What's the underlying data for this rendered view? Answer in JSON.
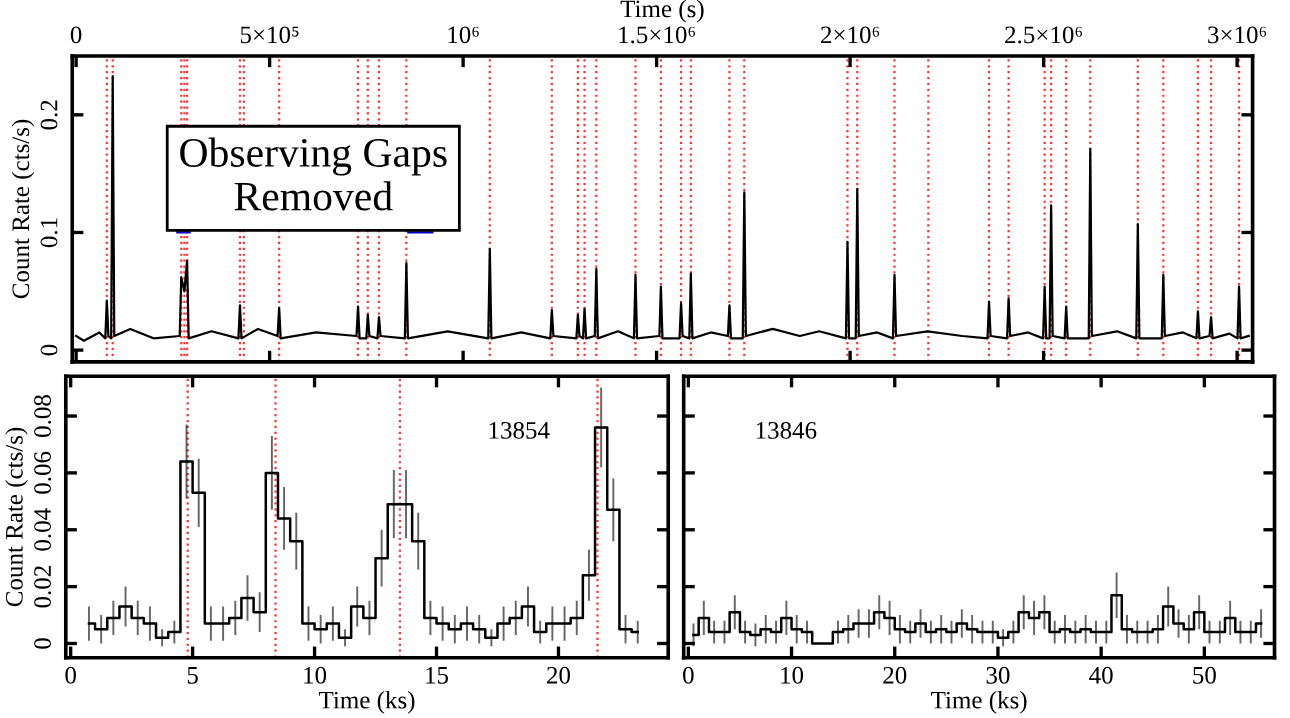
{
  "chart_data": [
    {
      "type": "line",
      "xlabel": "Time (s)",
      "ylabel": "Count Rate (cts/s)",
      "xlim": [
        -10000,
        3040000
      ],
      "xticks": [
        0,
        {
          "value": 500000,
          "label": "5×10⁵"
        },
        {
          "value": 1000000,
          "label": "10⁶"
        },
        {
          "value": 1500000,
          "label": "1.5×10⁶"
        },
        {
          "value": 2000000,
          "label": "2×10⁶"
        },
        {
          "value": 2500000,
          "label": "2.5×10⁶"
        },
        {
          "value": 3000000,
          "label": "3×10⁶"
        }
      ],
      "ylim": [
        -0.01,
        0.25
      ],
      "yticks": [
        0,
        0.1,
        0.2
      ],
      "grid": false,
      "annotations": [
        "Observing Gaps\nRemoved"
      ],
      "series": [
        {
          "color": "#000000",
          "x": [
            0,
            20000,
            60000,
            75400,
            79400,
            83400,
            90600,
            94600,
            98600,
            140000,
            200000,
            267700,
            271700,
            279800,
            286800,
            290800,
            350000,
            419400,
            423400,
            427400,
            470000,
            520600,
            524600,
            528600,
            620000,
            724500,
            728500,
            732500,
            749800,
            753800,
            757800,
            778600,
            782600,
            786600,
            849400,
            853400,
            857400,
            960000,
            1065000,
            1069000,
            1073000,
            1150000,
            1225300,
            1229300,
            1233300,
            1292600,
            1296600,
            1300600,
            1309800,
            1313800,
            1317800,
            1340200,
            1344200,
            1348200,
            1400000,
            1441400,
            1445400,
            1449400,
            1507100,
            1511100,
            1515100,
            1559200,
            1563200,
            1567200,
            1584500,
            1588500,
            1592500,
            1640000,
            1684200,
            1688200,
            1692200,
            1722600,
            1726600,
            1730600,
            1800000,
            1870000,
            1920000,
            1989200,
            1993200,
            1997200,
            2014500,
            2018500,
            2022500,
            2070000,
            2110700,
            2114700,
            2118700,
            2200000,
            2290000,
            2355000,
            2359000,
            2363000,
            2405600,
            2409600,
            2413600,
            2460000,
            2498700,
            2502700,
            2506700,
            2515400,
            2519400,
            2523400,
            2554300,
            2558300,
            2562300,
            2616600,
            2620600,
            2624600,
            2690000,
            2739500,
            2743500,
            2747500,
            2805300,
            2809300,
            2813300,
            2860000,
            2894800,
            2898800,
            2902800,
            2928700,
            2932700,
            2936700,
            2980000,
            3001000,
            3005000,
            3009000,
            3030000
          ],
          "values": [
            0.012,
            0.008,
            0.015,
            0.01,
            0.042,
            0.012,
            0.01,
            0.233,
            0.012,
            0.018,
            0.01,
            0.012,
            0.062,
            0.05,
            0.076,
            0.01,
            0.016,
            0.01,
            0.038,
            0.01,
            0.018,
            0.012,
            0.036,
            0.01,
            0.015,
            0.012,
            0.037,
            0.01,
            0.01,
            0.03,
            0.012,
            0.01,
            0.028,
            0.012,
            0.01,
            0.074,
            0.01,
            0.016,
            0.01,
            0.086,
            0.01,
            0.015,
            0.01,
            0.034,
            0.012,
            0.01,
            0.03,
            0.012,
            0.01,
            0.035,
            0.01,
            0.012,
            0.069,
            0.01,
            0.016,
            0.01,
            0.064,
            0.01,
            0.012,
            0.054,
            0.01,
            0.01,
            0.04,
            0.012,
            0.01,
            0.065,
            0.01,
            0.015,
            0.012,
            0.038,
            0.01,
            0.01,
            0.134,
            0.012,
            0.018,
            0.012,
            0.016,
            0.01,
            0.092,
            0.01,
            0.01,
            0.137,
            0.012,
            0.015,
            0.01,
            0.064,
            0.012,
            0.016,
            0.012,
            0.01,
            0.041,
            0.012,
            0.01,
            0.044,
            0.012,
            0.015,
            0.01,
            0.054,
            0.01,
            0.01,
            0.123,
            0.012,
            0.01,
            0.037,
            0.01,
            0.01,
            0.171,
            0.012,
            0.016,
            0.01,
            0.107,
            0.01,
            0.01,
            0.064,
            0.012,
            0.015,
            0.01,
            0.033,
            0.01,
            0.012,
            0.028,
            0.01,
            0.014,
            0.01,
            0.054,
            0.01,
            0.012
          ]
        },
        {
          "color": "#0000cc",
          "x": [
            261500,
            293400
          ],
          "values": [
            0.1,
            0.1
          ]
        },
        {
          "color": "#0000cc",
          "x": [
            858500,
            920700
          ],
          "values": [
            0.1,
            0.1
          ]
        }
      ],
      "ref_lines": [
        {
          "axis": "x",
          "value": 79400,
          "color": "#ff3333",
          "line_style": "dotted"
        },
        {
          "axis": "x",
          "value": 94600,
          "color": "#ff3333",
          "line_style": "dotted"
        },
        {
          "axis": "x",
          "value": 271700,
          "color": "#ff3333",
          "line_style": "dotted"
        },
        {
          "axis": "x",
          "value": 279800,
          "color": "#ff3333",
          "line_style": "dotted"
        },
        {
          "axis": "x",
          "value": 286800,
          "color": "#ff3333",
          "line_style": "dotted"
        },
        {
          "axis": "x",
          "value": 423400,
          "color": "#ff3333",
          "line_style": "dotted"
        },
        {
          "axis": "x",
          "value": 433600,
          "color": "#ff3333",
          "line_style": "dotted"
        },
        {
          "axis": "x",
          "value": 524600,
          "color": "#ff3333",
          "line_style": "dotted"
        },
        {
          "axis": "x",
          "value": 728500,
          "color": "#ff3333",
          "line_style": "dotted"
        },
        {
          "axis": "x",
          "value": 753800,
          "color": "#ff3333",
          "line_style": "dotted"
        },
        {
          "axis": "x",
          "value": 782600,
          "color": "#ff3333",
          "line_style": "dotted"
        },
        {
          "axis": "x",
          "value": 853400,
          "color": "#ff3333",
          "line_style": "dotted"
        },
        {
          "axis": "x",
          "value": 1069000,
          "color": "#ff3333",
          "line_style": "dotted"
        },
        {
          "axis": "x",
          "value": 1229300,
          "color": "#ff3333",
          "line_style": "dotted"
        },
        {
          "axis": "x",
          "value": 1296600,
          "color": "#ff3333",
          "line_style": "dotted"
        },
        {
          "axis": "x",
          "value": 1313800,
          "color": "#ff3333",
          "line_style": "dotted"
        },
        {
          "axis": "x",
          "value": 1344200,
          "color": "#ff3333",
          "line_style": "dotted"
        },
        {
          "axis": "x",
          "value": 1445400,
          "color": "#ff3333",
          "line_style": "dotted"
        },
        {
          "axis": "x",
          "value": 1511100,
          "color": "#ff3333",
          "line_style": "dotted"
        },
        {
          "axis": "x",
          "value": 1563200,
          "color": "#ff3333",
          "line_style": "dotted"
        },
        {
          "axis": "x",
          "value": 1588500,
          "color": "#ff3333",
          "line_style": "dotted"
        },
        {
          "axis": "x",
          "value": 1688200,
          "color": "#ff3333",
          "line_style": "dotted"
        },
        {
          "axis": "x",
          "value": 1726600,
          "color": "#ff3333",
          "line_style": "dotted"
        },
        {
          "axis": "x",
          "value": 1993200,
          "color": "#ff3333",
          "line_style": "dotted"
        },
        {
          "axis": "x",
          "value": 2018500,
          "color": "#ff3333",
          "line_style": "dotted"
        },
        {
          "axis": "x",
          "value": 2114700,
          "color": "#ff3333",
          "line_style": "dotted"
        },
        {
          "axis": "x",
          "value": 2202200,
          "color": "#ff3333",
          "line_style": "dotted"
        },
        {
          "axis": "x",
          "value": 2359000,
          "color": "#ff3333",
          "line_style": "dotted"
        },
        {
          "axis": "x",
          "value": 2409600,
          "color": "#ff3333",
          "line_style": "dotted"
        },
        {
          "axis": "x",
          "value": 2502700,
          "color": "#ff3333",
          "line_style": "dotted"
        },
        {
          "axis": "x",
          "value": 2519400,
          "color": "#ff3333",
          "line_style": "dotted"
        },
        {
          "axis": "x",
          "value": 2558300,
          "color": "#ff3333",
          "line_style": "dotted"
        },
        {
          "axis": "x",
          "value": 2620600,
          "color": "#ff3333",
          "line_style": "dotted"
        },
        {
          "axis": "x",
          "value": 2743500,
          "color": "#ff3333",
          "line_style": "dotted"
        },
        {
          "axis": "x",
          "value": 2809300,
          "color": "#ff3333",
          "line_style": "dotted"
        },
        {
          "axis": "x",
          "value": 2898800,
          "color": "#ff3333",
          "line_style": "dotted"
        },
        {
          "axis": "x",
          "value": 2932700,
          "color": "#ff3333",
          "line_style": "dotted"
        },
        {
          "axis": "x",
          "value": 3005000,
          "color": "#ff3333",
          "line_style": "dotted"
        }
      ]
    },
    {
      "type": "step",
      "xlabel": "Time (ks)",
      "ylabel": "Count Rate (cts/s)",
      "xlim": [
        -0.2,
        24.5
      ],
      "xticks": [
        0,
        5,
        10,
        15,
        20
      ],
      "ylim": [
        -0.005,
        0.094
      ],
      "yticks": [
        0,
        0.02,
        0.04,
        0.06,
        0.08
      ],
      "grid": false,
      "annotations": [
        "13854"
      ],
      "series": [
        {
          "color": "#000000",
          "x": [
            0.75,
            1.25,
            1.75,
            2.25,
            2.75,
            3.25,
            3.75,
            4.25,
            4.75,
            5.25,
            5.75,
            6.25,
            6.75,
            7.25,
            7.75,
            8.25,
            8.75,
            9.25,
            9.75,
            10.25,
            10.75,
            11.25,
            11.75,
            12.25,
            12.75,
            13.25,
            13.75,
            14.25,
            14.75,
            15.25,
            15.75,
            16.25,
            16.75,
            17.25,
            17.75,
            18.25,
            18.75,
            19.25,
            19.75,
            20.25,
            20.75,
            21.25,
            21.75,
            22.25,
            22.75,
            23.25
          ],
          "values": [
            0.007,
            0.005,
            0.009,
            0.013,
            0.009,
            0.007,
            0.002,
            0.004,
            0.064,
            0.053,
            0.007,
            0.007,
            0.009,
            0.016,
            0.011,
            0.06,
            0.044,
            0.036,
            0.007,
            0.005,
            0.007,
            0.002,
            0.013,
            0.009,
            0.03,
            0.049,
            0.049,
            0.036,
            0.009,
            0.007,
            0.005,
            0.007,
            0.005,
            0.002,
            0.007,
            0.009,
            0.013,
            0.004,
            0.007,
            0.007,
            0.009,
            0.024,
            0.076,
            0.047,
            0.005,
            0.004
          ],
          "errors": [
            0.006,
            0.005,
            0.006,
            0.007,
            0.006,
            0.006,
            0.003,
            0.004,
            0.013,
            0.012,
            0.006,
            0.006,
            0.006,
            0.008,
            0.007,
            0.013,
            0.011,
            0.01,
            0.006,
            0.005,
            0.006,
            0.003,
            0.007,
            0.006,
            0.01,
            0.012,
            0.012,
            0.01,
            0.006,
            0.006,
            0.005,
            0.006,
            0.005,
            0.003,
            0.006,
            0.006,
            0.007,
            0.004,
            0.006,
            0.006,
            0.006,
            0.009,
            0.014,
            0.011,
            0.005,
            0.004
          ]
        }
      ],
      "ref_lines": [
        {
          "axis": "x",
          "value": 4.8,
          "color": "#ff3333",
          "line_style": "dotted"
        },
        {
          "axis": "x",
          "value": 8.4,
          "color": "#ff3333",
          "line_style": "dotted"
        },
        {
          "axis": "x",
          "value": 13.5,
          "color": "#ff3333",
          "line_style": "dotted"
        },
        {
          "axis": "x",
          "value": 21.6,
          "color": "#ff3333",
          "line_style": "dotted"
        }
      ]
    },
    {
      "type": "step",
      "xlabel": "Time (ks)",
      "tick_labels": "x",
      "xlim": [
        -0.45,
        56.8
      ],
      "xticks": [
        0,
        10,
        20,
        30,
        40,
        50
      ],
      "ylim": [
        -0.005,
        0.094
      ],
      "yticks": [
        0,
        0.02,
        0.04,
        0.06,
        0.08
      ],
      "grid": false,
      "annotations": [
        "13846"
      ],
      "series": [
        {
          "color": "#000000",
          "x": [
            0.5,
            1.5,
            2.5,
            3.5,
            4.5,
            5.5,
            6.5,
            7.5,
            8.5,
            9.5,
            10.5,
            11.5,
            12.5,
            13.5,
            14.5,
            15.5,
            16.5,
            17.5,
            18.5,
            19.5,
            20.5,
            21.5,
            22.5,
            23.5,
            24.5,
            25.5,
            26.5,
            27.5,
            28.5,
            29.5,
            30.5,
            31.5,
            32.5,
            33.5,
            34.5,
            35.5,
            36.5,
            37.5,
            38.5,
            39.5,
            40.5,
            41.5,
            42.5,
            43.5,
            44.5,
            45.5,
            46.5,
            47.5,
            48.5,
            49.5,
            50.5,
            51.5,
            52.5,
            53.5,
            54.5,
            55.5
          ],
          "values": [
            0.003,
            0.009,
            0.004,
            0.004,
            0.011,
            0.004,
            0.003,
            0.005,
            0.004,
            0.009,
            0.005,
            0.004,
            0.0,
            0.0,
            0.004,
            0.005,
            0.007,
            0.007,
            0.011,
            0.009,
            0.005,
            0.004,
            0.007,
            0.004,
            0.005,
            0.004,
            0.007,
            0.005,
            0.004,
            0.004,
            0.002,
            0.004,
            0.011,
            0.009,
            0.011,
            0.004,
            0.005,
            0.004,
            0.005,
            0.004,
            0.004,
            0.017,
            0.005,
            0.004,
            0.004,
            0.005,
            0.013,
            0.007,
            0.005,
            0.011,
            0.004,
            0.004,
            0.009,
            0.004,
            0.004,
            0.007
          ],
          "errors": [
            0.004,
            0.006,
            0.004,
            0.004,
            0.006,
            0.004,
            0.004,
            0.005,
            0.004,
            0.006,
            0.005,
            0.004,
            null,
            null,
            0.004,
            0.005,
            0.005,
            0.005,
            0.006,
            0.006,
            0.005,
            0.004,
            0.005,
            0.004,
            0.005,
            0.004,
            0.005,
            0.005,
            0.004,
            0.004,
            0.003,
            0.004,
            0.006,
            0.006,
            0.006,
            0.004,
            0.005,
            0.004,
            0.005,
            0.004,
            0.004,
            0.008,
            0.005,
            0.004,
            0.004,
            0.005,
            0.007,
            0.005,
            0.005,
            0.006,
            0.004,
            0.004,
            0.006,
            0.004,
            0.004,
            0.005
          ]
        }
      ]
    }
  ]
}
